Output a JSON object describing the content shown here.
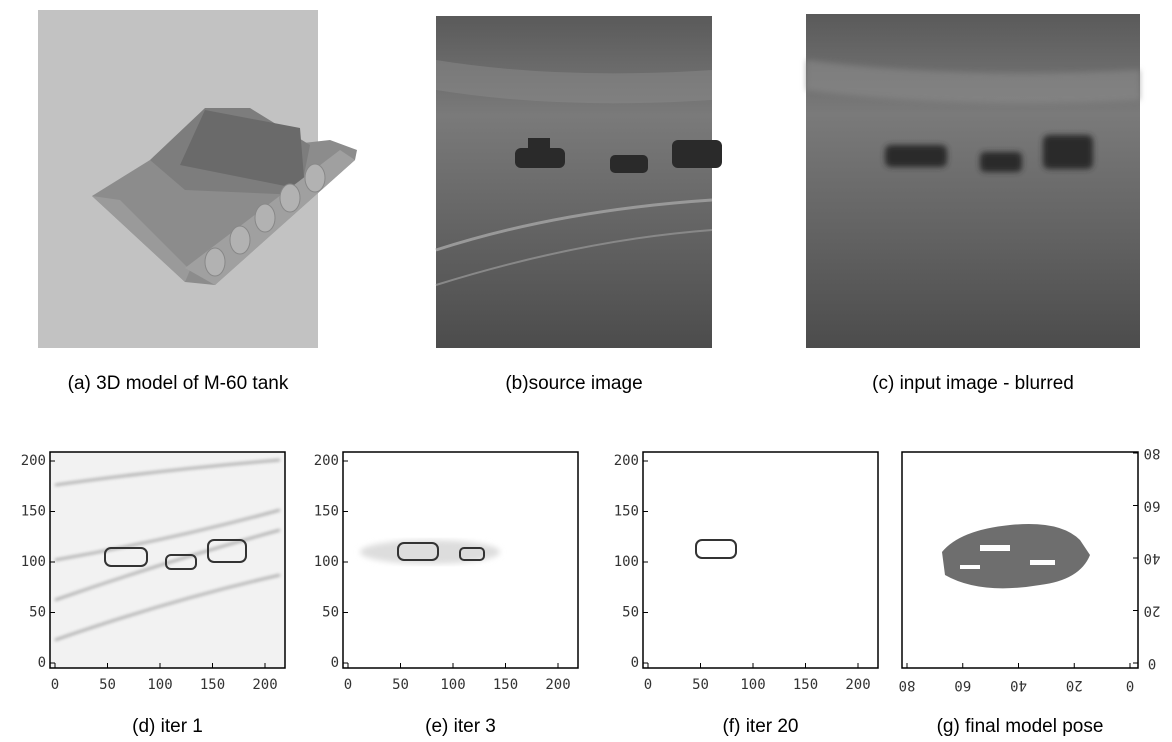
{
  "panels": [
    {
      "caption": "(a) 3D model of M-60 tank"
    },
    {
      "caption": "(b)source image"
    },
    {
      "caption": "(c) input image - blurred"
    }
  ],
  "plots": [
    {
      "caption": "(d) iter 1",
      "xticks": [
        0,
        50,
        100,
        150,
        200
      ],
      "yticks": [
        0,
        50,
        100,
        150,
        200
      ]
    },
    {
      "caption": "(e) iter 3",
      "xticks": [
        0,
        50,
        100,
        150,
        200
      ],
      "yticks": [
        0,
        50,
        100,
        150,
        200
      ]
    },
    {
      "caption": "(f) iter 20",
      "xticks": [
        0,
        50,
        100,
        150,
        200
      ],
      "yticks": [
        0,
        50,
        100,
        150,
        200
      ]
    },
    {
      "caption": "(g) final model pose",
      "xticks": [
        0,
        20,
        40,
        60,
        80
      ],
      "yticks": [
        0,
        20,
        40,
        60,
        80
      ]
    }
  ]
}
